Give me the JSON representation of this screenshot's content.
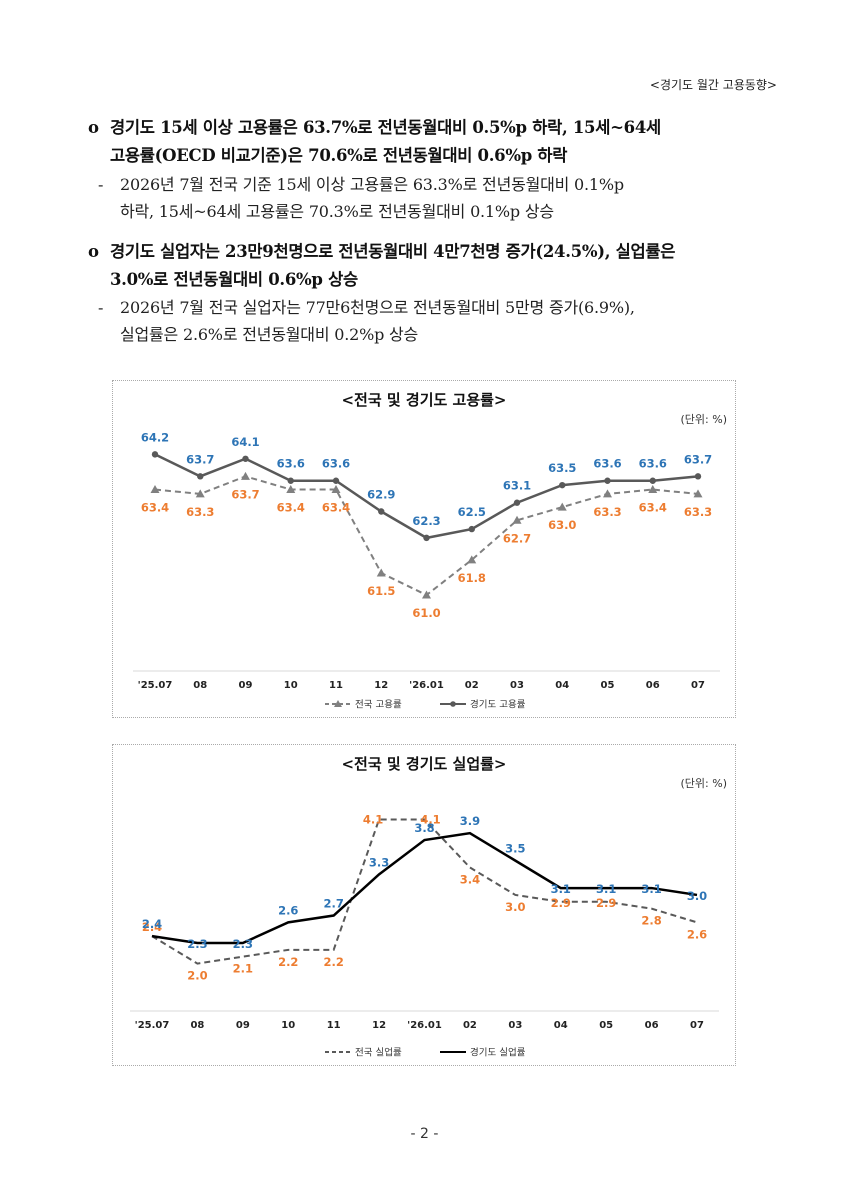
{
  "header": "<경기도 월간 고용동향>",
  "bullets": [
    {
      "marker": "o",
      "lines": [
        "경기도 15세 이상 고용률은 63.7%로 전년동월대비 0.5%p 하락, 15세~64세",
        "고용률(OECD 비교기준)은 70.6%로 전년동월대비 0.6%p 하락"
      ],
      "detail_marker": "-",
      "detail": [
        "2026년 7월 전국 기준 15세 이상 고용률은 63.3%로 전년동월대비 0.1%p",
        "하락, 15세~64세 고용률은 70.3%로 전년동월대비 0.1%p 상승"
      ]
    },
    {
      "marker": "o",
      "lines": [
        "경기도 실업자는 23만9천명으로 전년동월대비 4만7천명 증가(24.5%), 실업률은",
        "3.0%로 전년동월대비 0.6%p 상승"
      ],
      "detail_marker": "-",
      "detail": [
        "2026년 7월 전국 실업자는 77만6천명으로 전년동월대비 5만명 증가(6.9%),",
        "실업률은 2.6%로 전년동월대비 0.2%p 상승"
      ]
    }
  ],
  "chart_data": [
    {
      "type": "line",
      "title": "<전국 및 경기도 고용률>",
      "unit": "(단위: %)",
      "categories": [
        "'25.07",
        "08",
        "09",
        "10",
        "11",
        "12",
        "'26.01",
        "02",
        "03",
        "04",
        "05",
        "06",
        "07"
      ],
      "ylim": [
        60.5,
        64.8
      ],
      "series": [
        {
          "name": "전국 고용률",
          "style": "dashed",
          "marker": "triangle",
          "color": "#808080",
          "label_color": "#ED7D31",
          "values": [
            63.4,
            63.3,
            63.7,
            63.4,
            63.4,
            61.5,
            61.0,
            61.8,
            62.7,
            63.0,
            63.3,
            63.4,
            63.3
          ]
        },
        {
          "name": "경기도 고용률",
          "style": "solid",
          "marker": "circle",
          "color": "#595959",
          "label_color": "#2E75B6",
          "values": [
            64.2,
            63.7,
            64.1,
            63.6,
            63.6,
            62.9,
            62.3,
            62.5,
            63.1,
            63.5,
            63.6,
            63.6,
            63.7
          ]
        }
      ],
      "legend": "bottom"
    },
    {
      "type": "line",
      "title": "<전국 및 경기도 실업률>",
      "unit": "(단위: %)",
      "categories": [
        "'25.07",
        "08",
        "09",
        "10",
        "11",
        "12",
        "'26.01",
        "02",
        "03",
        "04",
        "05",
        "06",
        "07"
      ],
      "ylim": [
        1.6,
        4.5
      ],
      "series": [
        {
          "name": "전국 실업률",
          "style": "dashed",
          "marker": "none",
          "color": "#595959",
          "label_color": "#ED7D31",
          "values": [
            2.4,
            2.0,
            2.1,
            2.2,
            2.2,
            4.1,
            4.1,
            3.4,
            3.0,
            2.9,
            2.9,
            2.8,
            2.6
          ]
        },
        {
          "name": "경기도 실업률",
          "style": "solid",
          "marker": "none",
          "color": "#000000",
          "label_color": "#2E75B6",
          "values": [
            2.4,
            2.3,
            2.3,
            2.6,
            2.7,
            3.3,
            3.8,
            3.9,
            3.5,
            3.1,
            3.1,
            3.1,
            3.0
          ]
        }
      ],
      "legend": "bottom"
    }
  ],
  "footer": "- 2 -"
}
